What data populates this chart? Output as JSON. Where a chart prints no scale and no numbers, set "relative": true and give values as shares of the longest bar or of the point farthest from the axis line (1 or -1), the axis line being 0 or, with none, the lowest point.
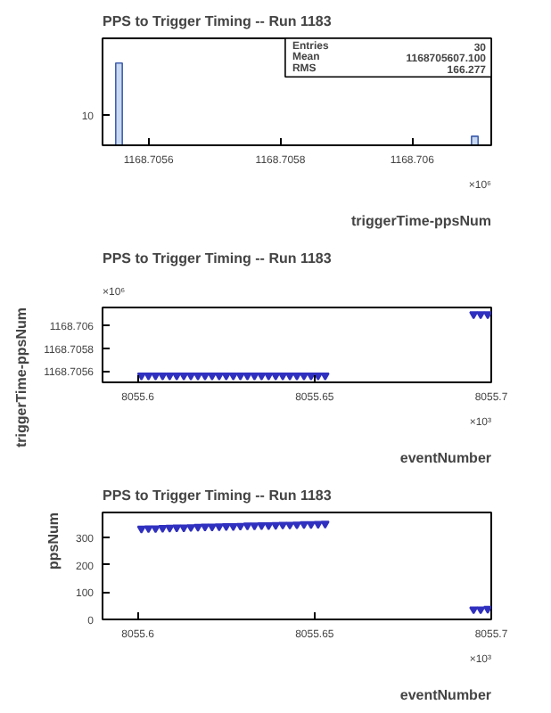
{
  "chart_data": [
    {
      "type": "bar",
      "title": "PPS to Trigger Timing -- Run 1183",
      "xlabel": "triggerTime-ppsNum",
      "x": [
        1168.705555,
        1168.706095
      ],
      "values": [
        1,
        0.11
      ],
      "color": "#c8d8f0",
      "relative": true,
      "xlim": [
        1168.70553,
        1168.70612
      ],
      "xticks": [
        1168.7056,
        1168.7058,
        1168.706
      ],
      "annotations": [
        "×10⁶",
        "10",
        "Entries",
        "30",
        "Mean",
        "1168705607.100",
        "RMS",
        "166.277"
      ],
      "grid": false
    },
    {
      "type": "scatter",
      "title": "PPS to Trigger Timing -- Run 1183",
      "xlabel": "eventNumber",
      "ylabel": "triggerTime-ppsNum",
      "marker": "triangle",
      "color": "#3030c0",
      "x": [
        8055.601,
        8055.603,
        8055.605,
        8055.607,
        8055.609,
        8055.611,
        8055.613,
        8055.615,
        8055.617,
        8055.619,
        8055.621,
        8055.623,
        8055.625,
        8055.627,
        8055.629,
        8055.631,
        8055.633,
        8055.635,
        8055.637,
        8055.639,
        8055.641,
        8055.643,
        8055.645,
        8055.647,
        8055.649,
        8055.651,
        8055.653,
        8055.695,
        8055.697,
        8055.699
      ],
      "values": [
        1168.70556,
        1168.70556,
        1168.70556,
        1168.70556,
        1168.70556,
        1168.70556,
        1168.70556,
        1168.70556,
        1168.70556,
        1168.70556,
        1168.70556,
        1168.70556,
        1168.70556,
        1168.70556,
        1168.70556,
        1168.70556,
        1168.70556,
        1168.70556,
        1168.70556,
        1168.70556,
        1168.70556,
        1168.70556,
        1168.70556,
        1168.70556,
        1168.70556,
        1168.70556,
        1168.70556,
        1168.7061,
        1168.7061,
        1168.7061
      ],
      "xlim": [
        8055.59,
        8055.7
      ],
      "xticks": [
        8055.6,
        8055.65,
        8055.7
      ],
      "ylim": [
        1168.7055,
        1168.70616
      ],
      "yticks": [
        1168.7056,
        1168.7058,
        1168.706
      ],
      "annotations": [
        "×10³",
        "×10⁶"
      ],
      "grid": false
    },
    {
      "type": "scatter",
      "title": "PPS to Trigger Timing -- Run 1183",
      "xlabel": "eventNumber",
      "ylabel": "ppsNum",
      "marker": "triangle",
      "color": "#3030c0",
      "x": [
        8055.601,
        8055.603,
        8055.605,
        8055.607,
        8055.609,
        8055.611,
        8055.613,
        8055.615,
        8055.617,
        8055.619,
        8055.621,
        8055.623,
        8055.625,
        8055.627,
        8055.629,
        8055.631,
        8055.633,
        8055.635,
        8055.637,
        8055.639,
        8055.641,
        8055.643,
        8055.645,
        8055.647,
        8055.649,
        8055.651,
        8055.653,
        8055.695,
        8055.697,
        8055.699
      ],
      "values": [
        334,
        335,
        335,
        336,
        337,
        338,
        338,
        339,
        340,
        341,
        341,
        342,
        343,
        343,
        344,
        345,
        345,
        346,
        346,
        347,
        348,
        348,
        349,
        350,
        350,
        351,
        352,
        37,
        37,
        39
      ],
      "xlim": [
        8055.59,
        8055.7
      ],
      "xticks": [
        8055.6,
        8055.65,
        8055.7
      ],
      "ylim": [
        0,
        393
      ],
      "yticks": [
        0,
        100,
        200,
        300
      ],
      "annotations": [
        "×10³"
      ],
      "grid": false
    }
  ]
}
